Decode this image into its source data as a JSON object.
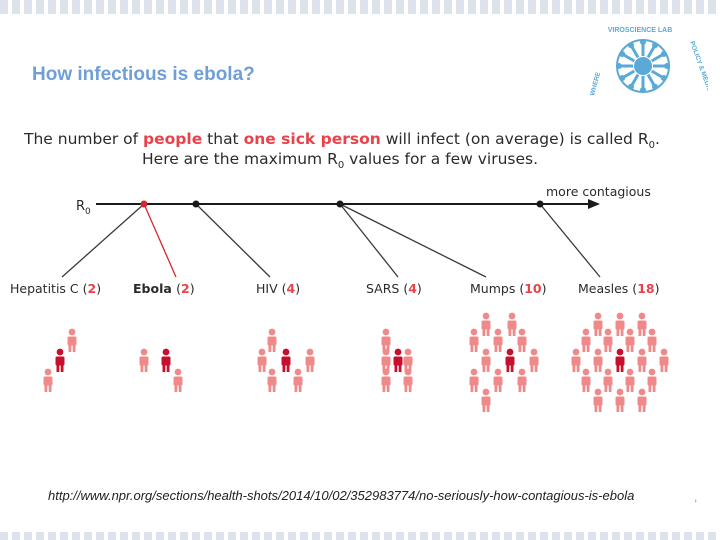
{
  "slide": {
    "title": "How infectious is ebola?",
    "footer_link": "http://www.npr.org/sections/health-shots/2014/10/02/352983774/no-seriously-how-contagious-is-ebola",
    "page_mark": ","
  },
  "logo": {
    "text": "VIROSCIENCE LAB",
    "side_text": "POLICY & MEDICINE",
    "left_text": "WHERE",
    "colors": {
      "primary": "#5aa9d6"
    }
  },
  "intro": {
    "line1_pre": "The number of ",
    "line1_hl1": "people",
    "line1_mid": " that ",
    "line1_hl2": "one sick person",
    "line1_post": " will infect (on average) is called R",
    "line1_sub": "0",
    "line1_end": ".",
    "line2_pre": "Here are the maximum R",
    "line2_sub": "0",
    "line2_post": " values for a few viruses."
  },
  "axis": {
    "label": "R",
    "label_sub": "0",
    "arrow_label": "more contagious"
  },
  "colors": {
    "sick": "#c8102e",
    "infected": "#f08a8a",
    "line": "#3a3a3a",
    "ebola_line": "#d7262e",
    "highlight": "#e8434b"
  },
  "viruses": [
    {
      "name": "Hepatitis C",
      "r0": "2",
      "bold": false
    },
    {
      "name": "Ebola",
      "r0": "2",
      "bold": true
    },
    {
      "name": "HIV",
      "r0": "4",
      "bold": false
    },
    {
      "name": "SARS",
      "r0": "4",
      "bold": false
    },
    {
      "name": "Mumps",
      "r0": "10",
      "bold": false
    },
    {
      "name": "Measles",
      "r0": "18",
      "bold": false
    }
  ]
}
